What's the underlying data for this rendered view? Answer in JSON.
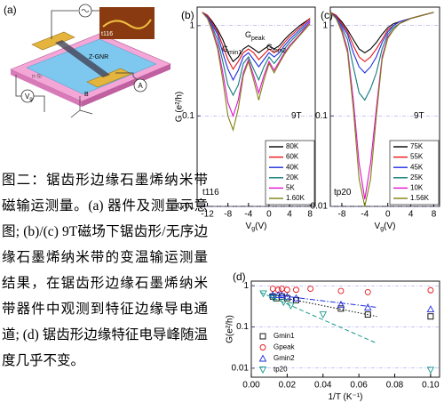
{
  "panel_a": {
    "label": "(a)",
    "inset": "t116",
    "ribbon": "Z-GNR",
    "substrate": "n-Si",
    "gate": {
      "main": "V",
      "sub": "g"
    },
    "meter": "A",
    "field": "B"
  },
  "caption": "图二：锯齿形边缘石墨烯纳米带磁输运测量。(a) 器件及测量示意图; (b)/(c) 9T磁场下锯齿形/无序边缘石墨烯纳米带的变温输运测量结果，在锯齿形边缘石墨烯纳米带器件中观测到特征边缘导电通道; (d) 锯齿形边缘特征电导峰随温度几乎不变。",
  "chart_data": [
    {
      "type": "line",
      "panel_label": "(b)",
      "y_label": "G (e²/h)",
      "x_label": {
        "main": "V",
        "sub": "g",
        "rest": "(V)"
      },
      "log_y": true,
      "xlim": [
        -14,
        9
      ],
      "xticks": [
        -12,
        -8,
        -4,
        0,
        4,
        8
      ],
      "ylim": [
        0.01,
        1.6
      ],
      "yticks": [
        0.01,
        0.1,
        1
      ],
      "legend": "lower right",
      "x": [
        -13,
        -12,
        -11,
        -10,
        -9,
        -8,
        -7,
        -6,
        -5,
        -4,
        -3,
        -2,
        -1,
        0,
        1,
        2,
        3,
        4,
        6,
        8
      ],
      "series": [
        {
          "name": "80K",
          "color": "#000000",
          "values": [
            1.4,
            1.3,
            1.1,
            0.9,
            0.7,
            0.5,
            0.4,
            0.45,
            0.55,
            0.6,
            0.55,
            0.5,
            0.55,
            0.6,
            0.55,
            0.6,
            0.7,
            0.8,
            1.0,
            1.2
          ]
        },
        {
          "name": "60K",
          "color": "#e8141a",
          "values": [
            1.4,
            1.3,
            1.05,
            0.85,
            0.6,
            0.42,
            0.33,
            0.4,
            0.5,
            0.55,
            0.5,
            0.42,
            0.48,
            0.55,
            0.5,
            0.55,
            0.65,
            0.75,
            0.95,
            1.2
          ]
        },
        {
          "name": "40K",
          "color": "#1f2fe0",
          "values": [
            1.4,
            1.25,
            1.0,
            0.8,
            0.5,
            0.33,
            0.25,
            0.32,
            0.45,
            0.5,
            0.42,
            0.35,
            0.42,
            0.5,
            0.45,
            0.5,
            0.6,
            0.7,
            0.9,
            1.15
          ]
        },
        {
          "name": "20K",
          "color": "#117a7a",
          "values": [
            1.4,
            1.2,
            0.95,
            0.7,
            0.4,
            0.22,
            0.17,
            0.22,
            0.38,
            0.45,
            0.33,
            0.25,
            0.35,
            0.45,
            0.38,
            0.45,
            0.55,
            0.65,
            0.85,
            1.1
          ]
        },
        {
          "name": "5K",
          "color": "#e010d0",
          "values": [
            1.4,
            1.2,
            0.9,
            0.6,
            0.3,
            0.14,
            0.1,
            0.15,
            0.3,
            0.42,
            0.28,
            0.18,
            0.28,
            0.4,
            0.32,
            0.4,
            0.5,
            0.6,
            0.8,
            1.1
          ]
        },
        {
          "name": "1.60K",
          "color": "#808010",
          "values": [
            1.4,
            1.2,
            0.85,
            0.55,
            0.25,
            0.1,
            0.07,
            0.12,
            0.28,
            0.4,
            0.25,
            0.15,
            0.25,
            0.38,
            0.3,
            0.38,
            0.48,
            0.58,
            0.78,
            1.05
          ]
        }
      ],
      "annotations": [
        {
          "text": "9T"
        },
        {
          "text": "t116"
        },
        {
          "text": "G",
          "sub": "min1"
        },
        {
          "text": "G",
          "sub": "peak"
        },
        {
          "text": "G",
          "sub": "min2"
        }
      ]
    },
    {
      "type": "line",
      "panel_label": "(c)",
      "x_label": {
        "main": "V",
        "sub": "g",
        "rest": "(V)"
      },
      "log_y": true,
      "xlim": [
        -10,
        9
      ],
      "xticks": [
        -8,
        -4,
        0,
        4,
        8
      ],
      "ylim": [
        0.01,
        1.6
      ],
      "yticks": [
        0.01,
        0.1,
        1
      ],
      "legend": "lower right",
      "x": [
        -10,
        -9,
        -8,
        -7,
        -6,
        -5,
        -4,
        -3,
        -2,
        -1,
        0,
        1,
        2,
        4,
        6,
        8
      ],
      "series": [
        {
          "name": "75K",
          "color": "#000000",
          "values": [
            1.4,
            1.3,
            1.1,
            0.9,
            0.7,
            0.55,
            0.5,
            0.55,
            0.65,
            0.8,
            0.95,
            1.05,
            1.1,
            1.2,
            1.3,
            1.4
          ]
        },
        {
          "name": "55K",
          "color": "#e8141a",
          "values": [
            1.4,
            1.3,
            1.05,
            0.85,
            0.6,
            0.45,
            0.4,
            0.45,
            0.55,
            0.7,
            0.9,
            1.0,
            1.1,
            1.2,
            1.3,
            1.4
          ]
        },
        {
          "name": "45K",
          "color": "#1f2fe0",
          "values": [
            1.4,
            1.25,
            1.0,
            0.8,
            0.5,
            0.35,
            0.3,
            0.35,
            0.45,
            0.65,
            0.85,
            1.0,
            1.1,
            1.2,
            1.3,
            1.4
          ]
        },
        {
          "name": "25K",
          "color": "#117a7a",
          "values": [
            1.4,
            1.2,
            0.95,
            0.7,
            0.35,
            0.18,
            0.15,
            0.2,
            0.3,
            0.55,
            0.8,
            0.95,
            1.05,
            1.2,
            1.3,
            1.4
          ]
        },
        {
          "name": "10K",
          "color": "#e010d0",
          "values": [
            1.4,
            1.2,
            0.9,
            0.55,
            0.15,
            0.03,
            0.012,
            0.03,
            0.12,
            0.45,
            0.75,
            0.9,
            1.05,
            1.2,
            1.3,
            1.4
          ]
        },
        {
          "name": "1.56K",
          "color": "#808010",
          "values": [
            1.4,
            1.2,
            0.85,
            0.5,
            0.12,
            0.02,
            0.01,
            0.02,
            0.1,
            0.42,
            0.72,
            0.9,
            1.05,
            1.2,
            1.3,
            1.4
          ]
        }
      ],
      "annotations": [
        {
          "text": "9T"
        },
        {
          "text": "tp20"
        }
      ]
    },
    {
      "type": "scatter",
      "panel_label": "(d)",
      "y_label": "G(e²/h)",
      "x_label": {
        "main": "1/T (K⁻¹)"
      },
      "log_y": true,
      "xlim": [
        0,
        0.105
      ],
      "xticks": [
        {
          "value": 0,
          "label": "0.00"
        },
        0.02,
        0.04,
        0.06,
        0.08,
        {
          "value": 0.1,
          "label": "0.10"
        }
      ],
      "ylim": [
        0.006,
        1.3
      ],
      "yticks": [
        0.01,
        0.1,
        1
      ],
      "legend": "lower left",
      "series": [
        {
          "name": "Gmin1",
          "color": "#000000",
          "marker": "square",
          "x": [
            0.012,
            0.014,
            0.017,
            0.02,
            0.025,
            0.05,
            0.065,
            0.1
          ],
          "values": [
            0.55,
            0.5,
            0.55,
            0.5,
            0.45,
            0.28,
            0.2,
            0.18
          ],
          "fit": {
            "x": [
              0.01,
              0.07
            ],
            "values": [
              0.6,
              0.18
            ],
            "dash": "dotted"
          }
        },
        {
          "name": "Gpeak",
          "color": "#e8141a",
          "marker": "circle",
          "x": [
            0.012,
            0.015,
            0.017,
            0.02,
            0.025,
            0.033,
            0.05,
            0.065,
            0.1
          ],
          "values": [
            0.85,
            0.8,
            0.85,
            0.8,
            0.8,
            0.85,
            0.75,
            0.7,
            0.78
          ]
        },
        {
          "name": "Gmin2",
          "color": "#1f2fe0",
          "marker": "triangle-up",
          "x": [
            0.012,
            0.015,
            0.017,
            0.02,
            0.025,
            0.05,
            0.065,
            0.1
          ],
          "values": [
            0.6,
            0.6,
            0.6,
            0.55,
            0.5,
            0.35,
            0.3,
            0.27
          ],
          "fit": {
            "x": [
              0.01,
              0.07
            ],
            "values": [
              0.62,
              0.3
            ],
            "dash": "dash-dot"
          }
        },
        {
          "name": "tp20",
          "color": "#1a9a8a",
          "marker": "triangle-down",
          "x": [
            0.0067,
            0.0125,
            0.018,
            0.022,
            0.04,
            0.1
          ],
          "values": [
            0.65,
            0.5,
            0.4,
            0.33,
            0.2,
            0.009
          ],
          "fit": {
            "x": [
              0.005,
              0.07
            ],
            "values": [
              0.7,
              0.04
            ],
            "dash": "dashed"
          }
        }
      ]
    }
  ]
}
